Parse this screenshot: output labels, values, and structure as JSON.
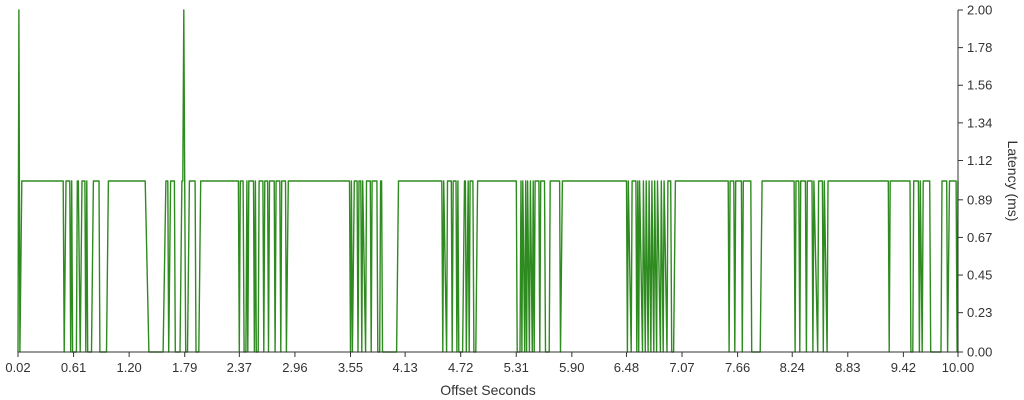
{
  "chart_data": {
    "type": "line",
    "title": "",
    "xlabel": "Offset Seconds",
    "ylabel": "Latency (ms)",
    "xlim": [
      0.02,
      10.0
    ],
    "ylim": [
      0.0,
      2.0
    ],
    "x_ticks": [
      "0.02",
      "0.61",
      "1.20",
      "1.79",
      "2.37",
      "2.96",
      "3.55",
      "4.13",
      "4.72",
      "5.31",
      "5.90",
      "6.48",
      "7.07",
      "7.66",
      "8.24",
      "8.83",
      "9.42",
      "10.00"
    ],
    "y_ticks": [
      "0.00",
      "0.23",
      "0.45",
      "0.67",
      "0.89",
      "1.12",
      "1.34",
      "1.56",
      "1.78",
      "2.00"
    ],
    "y_axis_side": "right",
    "grid": false,
    "series_color": "#2e8b1f",
    "series": [
      {
        "values_description": "binary-like latency trace: flat at 1.00 ms with frequent drops to 0.00 ms; spikes to 2.00 ms near 0.02 s and 1.79 s",
        "points": [
          [
            0.02,
            0.0
          ],
          [
            0.03,
            2.0
          ],
          [
            0.04,
            0.0
          ],
          [
            0.06,
            1.0
          ],
          [
            0.5,
            1.0
          ],
          [
            0.51,
            0.0
          ],
          [
            0.53,
            1.0
          ],
          [
            0.57,
            1.0
          ],
          [
            0.58,
            0.0
          ],
          [
            0.59,
            1.0
          ],
          [
            0.6,
            0.0
          ],
          [
            0.64,
            0.0
          ],
          [
            0.65,
            1.0
          ],
          [
            0.66,
            1.0
          ],
          [
            0.68,
            0.0
          ],
          [
            0.7,
            1.0
          ],
          [
            0.73,
            1.0
          ],
          [
            0.74,
            0.0
          ],
          [
            0.75,
            1.0
          ],
          [
            0.76,
            0.0
          ],
          [
            0.8,
            0.0
          ],
          [
            0.82,
            1.0
          ],
          [
            0.88,
            1.0
          ],
          [
            0.89,
            0.0
          ],
          [
            0.96,
            0.0
          ],
          [
            0.98,
            1.0
          ],
          [
            1.37,
            1.0
          ],
          [
            1.41,
            0.0
          ],
          [
            1.56,
            0.0
          ],
          [
            1.59,
            1.0
          ],
          [
            1.61,
            1.0
          ],
          [
            1.62,
            0.0
          ],
          [
            1.64,
            1.0
          ],
          [
            1.68,
            1.0
          ],
          [
            1.69,
            0.0
          ],
          [
            1.74,
            0.0
          ],
          [
            1.76,
            1.0
          ],
          [
            1.77,
            1.0
          ],
          [
            1.78,
            2.0
          ],
          [
            1.79,
            1.0
          ],
          [
            1.8,
            0.0
          ],
          [
            1.82,
            0.0
          ],
          [
            1.84,
            1.0
          ],
          [
            1.9,
            1.0
          ],
          [
            1.91,
            0.0
          ],
          [
            1.94,
            0.0
          ],
          [
            1.96,
            1.0
          ],
          [
            2.36,
            1.0
          ],
          [
            2.37,
            0.0
          ],
          [
            2.38,
            1.0
          ],
          [
            2.41,
            1.0
          ],
          [
            2.42,
            0.0
          ],
          [
            2.44,
            0.0
          ],
          [
            2.45,
            1.0
          ],
          [
            2.46,
            0.0
          ],
          [
            2.47,
            1.0
          ],
          [
            2.52,
            1.0
          ],
          [
            2.53,
            0.0
          ],
          [
            2.54,
            1.0
          ],
          [
            2.55,
            0.0
          ],
          [
            2.57,
            0.0
          ],
          [
            2.58,
            1.0
          ],
          [
            2.62,
            1.0
          ],
          [
            2.63,
            0.0
          ],
          [
            2.64,
            1.0
          ],
          [
            2.67,
            1.0
          ],
          [
            2.68,
            0.0
          ],
          [
            2.69,
            1.0
          ],
          [
            2.74,
            1.0
          ],
          [
            2.75,
            0.0
          ],
          [
            2.76,
            1.0
          ],
          [
            2.8,
            1.0
          ],
          [
            2.81,
            0.0
          ],
          [
            2.82,
            1.0
          ],
          [
            2.86,
            1.0
          ],
          [
            2.87,
            0.0
          ],
          [
            2.89,
            1.0
          ],
          [
            3.54,
            1.0
          ],
          [
            3.55,
            0.0
          ],
          [
            3.56,
            1.0
          ],
          [
            3.57,
            0.0
          ],
          [
            3.59,
            1.0
          ],
          [
            3.62,
            1.0
          ],
          [
            3.63,
            0.0
          ],
          [
            3.64,
            1.0
          ],
          [
            3.66,
            1.0
          ],
          [
            3.67,
            0.0
          ],
          [
            3.68,
            1.0
          ],
          [
            3.71,
            0.0
          ],
          [
            3.72,
            1.0
          ],
          [
            3.76,
            1.0
          ],
          [
            3.77,
            0.0
          ],
          [
            3.78,
            1.0
          ],
          [
            3.83,
            1.0
          ],
          [
            3.84,
            0.0
          ],
          [
            3.86,
            0.0
          ],
          [
            3.87,
            1.0
          ],
          [
            3.88,
            1.0
          ],
          [
            3.89,
            0.0
          ],
          [
            4.04,
            0.0
          ],
          [
            4.06,
            1.0
          ],
          [
            4.52,
            1.0
          ],
          [
            4.53,
            0.0
          ],
          [
            4.54,
            1.0
          ],
          [
            4.57,
            0.0
          ],
          [
            4.58,
            1.0
          ],
          [
            4.62,
            1.0
          ],
          [
            4.63,
            0.0
          ],
          [
            4.64,
            1.0
          ],
          [
            4.67,
            1.0
          ],
          [
            4.68,
            0.0
          ],
          [
            4.69,
            1.0
          ],
          [
            4.7,
            0.0
          ],
          [
            4.74,
            0.0
          ],
          [
            4.76,
            1.0
          ],
          [
            4.77,
            1.0
          ],
          [
            4.78,
            0.0
          ],
          [
            4.8,
            1.0
          ],
          [
            4.81,
            0.0
          ],
          [
            4.82,
            1.0
          ],
          [
            4.85,
            1.0
          ],
          [
            4.86,
            0.0
          ],
          [
            4.88,
            0.0
          ],
          [
            4.9,
            1.0
          ],
          [
            5.31,
            1.0
          ],
          [
            5.32,
            0.0
          ],
          [
            5.35,
            0.0
          ],
          [
            5.36,
            1.0
          ],
          [
            5.37,
            0.0
          ],
          [
            5.38,
            1.0
          ],
          [
            5.4,
            0.0
          ],
          [
            5.41,
            1.0
          ],
          [
            5.42,
            0.0
          ],
          [
            5.43,
            1.0
          ],
          [
            5.45,
            0.0
          ],
          [
            5.46,
            1.0
          ],
          [
            5.48,
            0.0
          ],
          [
            5.49,
            1.0
          ],
          [
            5.5,
            0.0
          ],
          [
            5.51,
            1.0
          ],
          [
            5.55,
            1.0
          ],
          [
            5.56,
            0.0
          ],
          [
            5.57,
            1.0
          ],
          [
            5.61,
            1.0
          ],
          [
            5.62,
            0.0
          ],
          [
            5.66,
            0.0
          ],
          [
            5.67,
            1.0
          ],
          [
            5.77,
            1.0
          ],
          [
            5.78,
            0.0
          ],
          [
            5.8,
            1.0
          ],
          [
            6.48,
            1.0
          ],
          [
            6.49,
            0.0
          ],
          [
            6.5,
            1.0
          ],
          [
            6.53,
            0.0
          ],
          [
            6.54,
            1.0
          ],
          [
            6.58,
            1.0
          ],
          [
            6.59,
            0.0
          ],
          [
            6.6,
            1.0
          ],
          [
            6.61,
            0.0
          ],
          [
            6.62,
            1.0
          ],
          [
            6.65,
            0.0
          ],
          [
            6.66,
            1.0
          ],
          [
            6.68,
            0.0
          ],
          [
            6.69,
            1.0
          ],
          [
            6.71,
            0.0
          ],
          [
            6.72,
            1.0
          ],
          [
            6.74,
            0.0
          ],
          [
            6.75,
            1.0
          ],
          [
            6.77,
            0.0
          ],
          [
            6.78,
            1.0
          ],
          [
            6.8,
            0.0
          ],
          [
            6.81,
            1.0
          ],
          [
            6.84,
            0.0
          ],
          [
            6.85,
            1.0
          ],
          [
            6.87,
            0.0
          ],
          [
            6.88,
            1.0
          ],
          [
            6.91,
            0.0
          ],
          [
            6.92,
            1.0
          ],
          [
            6.95,
            1.0
          ],
          [
            6.96,
            0.0
          ],
          [
            6.98,
            0.0
          ],
          [
            7.0,
            1.0
          ],
          [
            7.56,
            1.0
          ],
          [
            7.57,
            0.0
          ],
          [
            7.58,
            1.0
          ],
          [
            7.62,
            1.0
          ],
          [
            7.63,
            0.0
          ],
          [
            7.64,
            1.0
          ],
          [
            7.7,
            1.0
          ],
          [
            7.71,
            0.0
          ],
          [
            7.72,
            1.0
          ],
          [
            7.8,
            1.0
          ],
          [
            7.81,
            0.0
          ],
          [
            7.9,
            0.0
          ],
          [
            7.92,
            1.0
          ],
          [
            8.26,
            1.0
          ],
          [
            8.27,
            0.0
          ],
          [
            8.28,
            1.0
          ],
          [
            8.31,
            1.0
          ],
          [
            8.32,
            0.0
          ],
          [
            8.33,
            1.0
          ],
          [
            8.38,
            1.0
          ],
          [
            8.39,
            0.0
          ],
          [
            8.4,
            1.0
          ],
          [
            8.45,
            1.0
          ],
          [
            8.46,
            0.0
          ],
          [
            8.47,
            1.0
          ],
          [
            8.51,
            0.0
          ],
          [
            8.52,
            1.0
          ],
          [
            8.56,
            1.0
          ],
          [
            8.57,
            0.0
          ],
          [
            8.58,
            1.0
          ],
          [
            8.61,
            0.0
          ],
          [
            8.62,
            1.0
          ],
          [
            9.26,
            1.0
          ],
          [
            9.27,
            0.0
          ],
          [
            9.28,
            1.0
          ],
          [
            9.49,
            1.0
          ],
          [
            9.5,
            0.0
          ],
          [
            9.52,
            0.0
          ],
          [
            9.53,
            1.0
          ],
          [
            9.58,
            1.0
          ],
          [
            9.59,
            0.0
          ],
          [
            9.6,
            1.0
          ],
          [
            9.62,
            0.0
          ],
          [
            9.63,
            1.0
          ],
          [
            9.7,
            1.0
          ],
          [
            9.71,
            0.0
          ],
          [
            9.82,
            0.0
          ],
          [
            9.83,
            1.0
          ],
          [
            9.88,
            1.0
          ],
          [
            9.89,
            0.0
          ],
          [
            9.91,
            1.0
          ],
          [
            9.98,
            1.0
          ],
          [
            9.99,
            0.0
          ],
          [
            10.0,
            1.0
          ]
        ]
      }
    ]
  }
}
